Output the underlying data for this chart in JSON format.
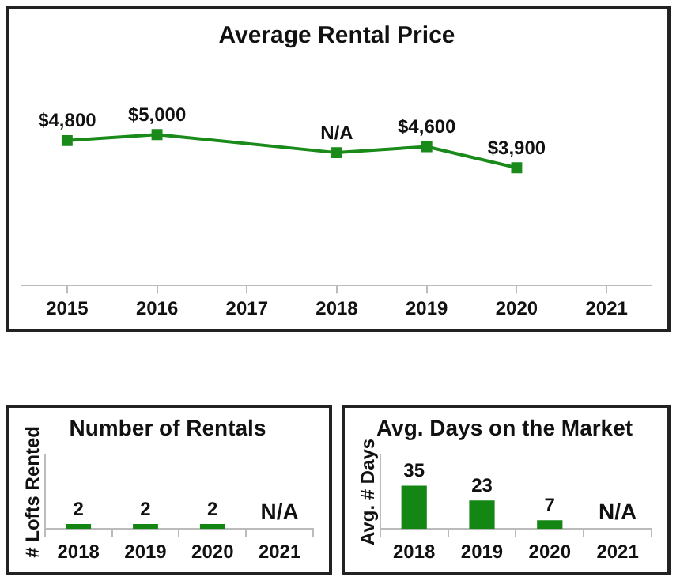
{
  "chart_data": [
    {
      "type": "line",
      "title": "Average Rental Price",
      "categories": [
        "2015",
        "2016",
        "2017",
        "2018",
        "2019",
        "2020",
        "2021"
      ],
      "values": [
        4800,
        5000,
        null,
        4400,
        4600,
        3900,
        null
      ],
      "value_labels": [
        "$4,800",
        "$5,000",
        null,
        "N/A",
        "$4,600",
        "$3,900",
        null
      ],
      "color": "#1a8a1a",
      "marker": "square",
      "tick_labels": "x",
      "grid": false,
      "legend": false
    },
    {
      "type": "bar",
      "title": "Number of Rentals",
      "ylabel": "# Lofts Rented",
      "categories": [
        "2018",
        "2019",
        "2020",
        "2021"
      ],
      "values": [
        2,
        2,
        2,
        null
      ],
      "value_labels": [
        "2",
        "2",
        "2",
        "N/A"
      ],
      "color": "#138613",
      "ylim": [
        0,
        30
      ],
      "tick_labels": "x",
      "grid": false,
      "legend": false
    },
    {
      "type": "bar",
      "title": "Avg. Days on the Market",
      "ylabel": "Avg. # Days",
      "categories": [
        "2018",
        "2019",
        "2020",
        "2021"
      ],
      "values": [
        35,
        23,
        7,
        null
      ],
      "value_labels": [
        "35",
        "23",
        "7",
        "N/A"
      ],
      "color": "#138613",
      "ylim": [
        0,
        60
      ],
      "tick_labels": "x",
      "grid": false,
      "legend": false
    }
  ]
}
